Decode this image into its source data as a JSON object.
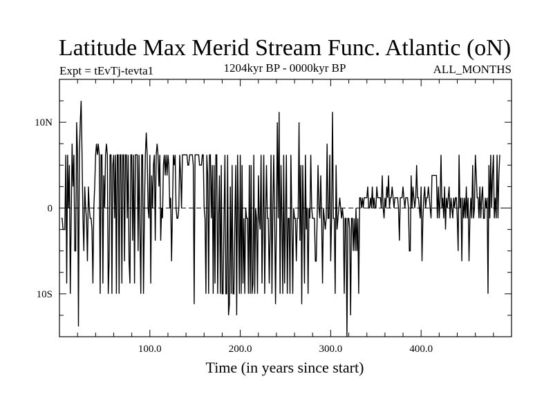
{
  "chart_data": {
    "type": "line",
    "title": "Latitude Max Merid Stream Func. Atlantic (oN)",
    "subtitle_left": "Expt = tEvTj-tevta1",
    "subtitle_center": "1204kyr BP - 0000kyr BP",
    "subtitle_right": "ALL_MONTHS",
    "xlabel": "Time (in years since start)",
    "ylabel": "",
    "xlim": [
      0,
      500
    ],
    "ylim": [
      -15,
      15
    ],
    "x_ticks": [
      100,
      200,
      300,
      400
    ],
    "x_tick_labels": [
      "100.0",
      "200.0",
      "300.0",
      "400.0"
    ],
    "y_ticks": [
      -10,
      0,
      10
    ],
    "y_tick_labels": [
      "10S",
      "0",
      "10N"
    ],
    "zero_line": true,
    "series": [
      {
        "name": "Latitude Max Merid Stream Func",
        "color": "#000000",
        "x_start": 2,
        "x_step": 1,
        "values": [
          -1.2,
          -1.2,
          -2.5,
          -2.5,
          -2.5,
          6.2,
          -8.8,
          6.2,
          0,
          5,
          -10,
          -1.2,
          7.5,
          2.5,
          6.2,
          -5,
          -5,
          10,
          6.2,
          -13.8,
          6.2,
          10,
          12.5,
          6.2,
          -1.2,
          -5,
          2.5,
          0,
          -1.2,
          -6.2,
          2.5,
          0,
          -1.2,
          -1.2,
          -2.5,
          -8.8,
          0,
          2.5,
          6.2,
          7.5,
          6.2,
          7.5,
          6.2,
          -10,
          6.2,
          6.2,
          -8.8,
          3.8,
          0,
          6.2,
          7.5,
          6.2,
          -10,
          -6.2,
          6.2,
          6.2,
          -10,
          5,
          6.2,
          -1.2,
          6.2,
          -10,
          6.2,
          6.2,
          -10,
          6.2,
          6.2,
          -8.8,
          6.2,
          6.2,
          -6.2,
          6.2,
          6.2,
          -1.2,
          6.2,
          -6.2,
          -8.8,
          6.2,
          6.2,
          -3.8,
          6.2,
          -8.8,
          6.2,
          6.2,
          6.2,
          -5,
          6.2,
          -2.5,
          -10,
          6.2,
          6.2,
          -10,
          0,
          6.2,
          8.8,
          6.2,
          0,
          -1.2,
          6.2,
          -8.8,
          3.8,
          0,
          5,
          6.2,
          -3.8,
          6.2,
          7.5,
          6.2,
          2.5,
          6.2,
          -3.8,
          0,
          -1.2,
          5,
          6.2,
          3.8,
          6.2,
          3.8,
          6.2,
          5,
          0,
          1.2,
          -6.2,
          0,
          6.2,
          5,
          6.2,
          0,
          -1.2,
          -1.2,
          0,
          6.2,
          3.8,
          0,
          6.2,
          6.2,
          6.2,
          6.2,
          6.2,
          6.2,
          5,
          5,
          6.2,
          6.2,
          6.2,
          6.2,
          5,
          -11.2,
          6.2,
          6.2,
          6.2,
          6.2,
          6.2,
          5,
          5,
          5,
          6.2,
          6.2,
          0,
          -1.2,
          -10,
          6.2,
          3.8,
          -10,
          6.2,
          6.2,
          -1.2,
          5,
          -10,
          5,
          -8.8,
          6.2,
          6.2,
          -10,
          -1.2,
          3.8,
          -10,
          5,
          -10,
          -10,
          -1.2,
          6.2,
          -10,
          -10,
          6.2,
          -12.5,
          -11.2,
          2.5,
          -10,
          5,
          -10,
          -10,
          -1.2,
          5,
          -12.5,
          6.2,
          -1.2,
          -10,
          6.2,
          -10,
          5,
          -8.8,
          -1.2,
          -10,
          0,
          -1.2,
          -1.2,
          -10,
          5,
          -10,
          5,
          -10,
          -8.8,
          6.2,
          -10,
          0,
          -1.2,
          -10,
          3.8,
          -1.2,
          -2.5,
          6.2,
          -8.8,
          -1.2,
          6.2,
          -10,
          -1.2,
          5,
          -1.2,
          -1.2,
          -8.8,
          -2.5,
          6.2,
          -10,
          0,
          6.2,
          -1.2,
          -11.2,
          -1.2,
          10,
          -1.2,
          11.2,
          -10,
          5,
          -1.2,
          -10,
          6.2,
          -8.8,
          -1.2,
          6.2,
          -10,
          -1.2,
          -1.2,
          -10,
          6.2,
          -1.2,
          -10,
          0,
          -1.2,
          -1.2,
          -6.2,
          -1.2,
          -1.2,
          10,
          -3.8,
          5,
          -11.2,
          5,
          -1.2,
          -8.8,
          6.2,
          -2.5,
          0,
          -10,
          0,
          -1.2,
          6.2,
          0,
          -1.2,
          -1.2,
          -1.2,
          -6.2,
          -6.2,
          -1.2,
          5,
          0,
          -1.2,
          3.8,
          -1.2,
          -8.8,
          0,
          -1.2,
          -2.5,
          -1.2,
          7.5,
          -1.2,
          -1.2,
          6.2,
          -6.2,
          -1.2,
          11.2,
          -1.2,
          -1.2,
          -10,
          5,
          -2.5,
          -1.2,
          0,
          1.2,
          0,
          -1.2,
          0,
          -1.2,
          -10,
          -1.2,
          -1.2,
          -15,
          -1.2,
          -1.2,
          -2.5,
          -12.5,
          -1.2,
          -1.2,
          -5,
          -1.2,
          -5,
          0,
          -5,
          -1.2,
          -10,
          1.2,
          1.2,
          0,
          1.2,
          0,
          1.2,
          1.2,
          1.2,
          1.2,
          2.5,
          0,
          0,
          1.2,
          0,
          2.5,
          0,
          1.2,
          0,
          0,
          2.5,
          1.2,
          1.2,
          1.2,
          1.2,
          0,
          3.8,
          0,
          -1.2,
          1.2,
          0,
          2.5,
          1.2,
          3.8,
          0,
          1.2,
          1.2,
          2.5,
          1.2,
          0,
          1.2,
          1.2,
          1.2,
          1.2,
          0,
          -3.8,
          1.2,
          1.2,
          1.2,
          2.5,
          1.2,
          0,
          1.2,
          1.2,
          1.2,
          0,
          -5,
          -5,
          3.8,
          0,
          2.5,
          1.2,
          0,
          1.2,
          5,
          1.2,
          1.2,
          0,
          -1.2,
          2.5,
          -6.2,
          -1.2,
          1.2,
          2.5,
          0,
          1.2,
          1.2,
          2.5,
          1.2,
          0,
          -1.2,
          3.8,
          3.8,
          3.8,
          3.8,
          3.8,
          3.8,
          -1.2,
          2.5,
          -1.2,
          1.2,
          6.2,
          0,
          1.2,
          -1.2,
          2.5,
          -2.5,
          1.2,
          0,
          1.2,
          2.5,
          -1.2,
          1.2,
          0,
          -1.2,
          1.2,
          0,
          1.2,
          1.2,
          -1.2,
          -5,
          6.2,
          0,
          1.2,
          -6.2,
          1.2,
          -1.2,
          1.2,
          -1.2,
          2.5,
          -1.2,
          1.2,
          -6.2,
          -1.2,
          1.2,
          -1.2,
          5,
          -1.2,
          0,
          6.2,
          3.8,
          1.2,
          1.2,
          -1.2,
          2.5,
          -1.2,
          1.2,
          2.5,
          -1.2,
          -1.2,
          1.2,
          0,
          1.2,
          -10,
          5,
          -1.2,
          6.2,
          0,
          3.8,
          6.2,
          -1.2,
          1.2,
          -1.2,
          6.2,
          -1.2,
          3.8,
          6.2
        ]
      }
    ]
  }
}
